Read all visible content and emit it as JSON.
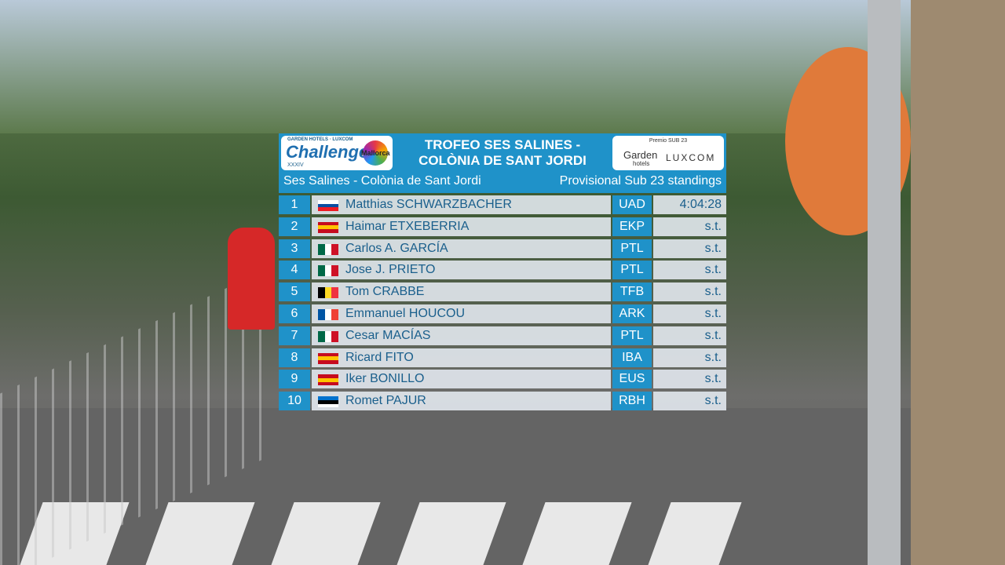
{
  "header": {
    "logo_left": {
      "top": "GARDEN HOTELS · LUXCOM",
      "name": "Challenge",
      "region": "Mallorca",
      "edition": "XXXIV"
    },
    "title_line1": "TROFEO SES SALINES -",
    "title_line2": "COLÒNIA DE SANT JORDI",
    "logo_right": {
      "prize": "Premio SUB 23",
      "sponsor1": "Garden",
      "sponsor1_sub": "hotels",
      "sponsor2": "LUXCOM"
    }
  },
  "subheader": {
    "stage": "Ses Salines - Colònia de Sant Jordi",
    "standings": "Provisional Sub 23 standings"
  },
  "table": {
    "rows": [
      [
        "1",
        "Matthias SCHWARZBACHER",
        "UAD",
        "4:04:28"
      ],
      [
        "2",
        "Haimar ETXEBERRIA",
        "EKP",
        "s.t."
      ],
      [
        "3",
        "Carlos A. GARCÍA",
        "PTL",
        "s.t."
      ],
      [
        "4",
        "Jose J. PRIETO",
        "PTL",
        "s.t."
      ],
      [
        "5",
        "Tom CRABBE",
        "TFB",
        "s.t."
      ],
      [
        "6",
        "Emmanuel HOUCOU",
        "ARK",
        "s.t."
      ],
      [
        "7",
        "Cesar MACÍAS",
        "PTL",
        "s.t."
      ],
      [
        "8",
        "Ricard FITO",
        "IBA",
        "s.t."
      ],
      [
        "9",
        "Iker BONILLO",
        "EUS",
        "s.t."
      ],
      [
        "10",
        "Romet PAJUR",
        "RBH",
        "s.t."
      ]
    ]
  }
}
